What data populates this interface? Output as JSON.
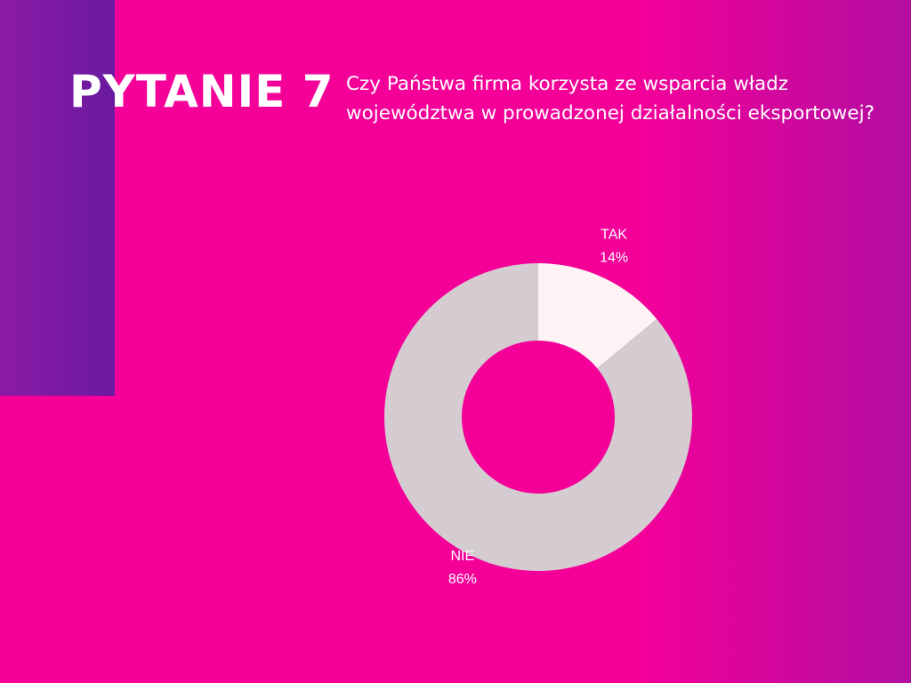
{
  "chart_data": {
    "type": "donut",
    "title": "PYTANIE 7",
    "subtitle": "Czy Państwa firma korzysta ze wsparcia władz województwa w prowadzonej działalności eksportowej?",
    "categories": [
      "TAK",
      "NIE"
    ],
    "values": [
      14,
      86
    ],
    "value_labels": [
      "14%",
      "86%"
    ],
    "colors": [
      "#fdf3f5",
      "#d5ccd1"
    ]
  }
}
